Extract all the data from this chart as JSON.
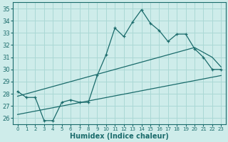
{
  "title": "",
  "xlabel": "Humidex (Indice chaleur)",
  "ylabel": "",
  "background_color": "#ceecea",
  "grid_color": "#aad8d5",
  "line_color": "#1a6b6b",
  "xlim": [
    -0.5,
    23.5
  ],
  "ylim": [
    25.5,
    35.5
  ],
  "yticks": [
    26,
    27,
    28,
    29,
    30,
    31,
    32,
    33,
    34,
    35
  ],
  "xticks": [
    0,
    1,
    2,
    3,
    4,
    5,
    6,
    7,
    8,
    9,
    10,
    11,
    12,
    13,
    14,
    15,
    16,
    17,
    18,
    19,
    20,
    21,
    22,
    23
  ],
  "line1_x": [
    0,
    1,
    2,
    3,
    4,
    5,
    6,
    7,
    8,
    9,
    10,
    11,
    12,
    13,
    14,
    15,
    16,
    17,
    18,
    19,
    20,
    21,
    22,
    23
  ],
  "line1_y": [
    28.2,
    27.7,
    27.7,
    25.8,
    25.8,
    27.3,
    27.5,
    27.3,
    27.3,
    29.5,
    31.2,
    33.4,
    32.7,
    33.9,
    34.9,
    33.8,
    33.2,
    32.3,
    32.9,
    32.9,
    31.7,
    31.0,
    30.0,
    30.0
  ],
  "line2_x": [
    0,
    20,
    22,
    23
  ],
  "line2_y": [
    27.8,
    31.8,
    31.0,
    30.2
  ],
  "line3_x": [
    0,
    23
  ],
  "line3_y": [
    26.3,
    29.5
  ]
}
